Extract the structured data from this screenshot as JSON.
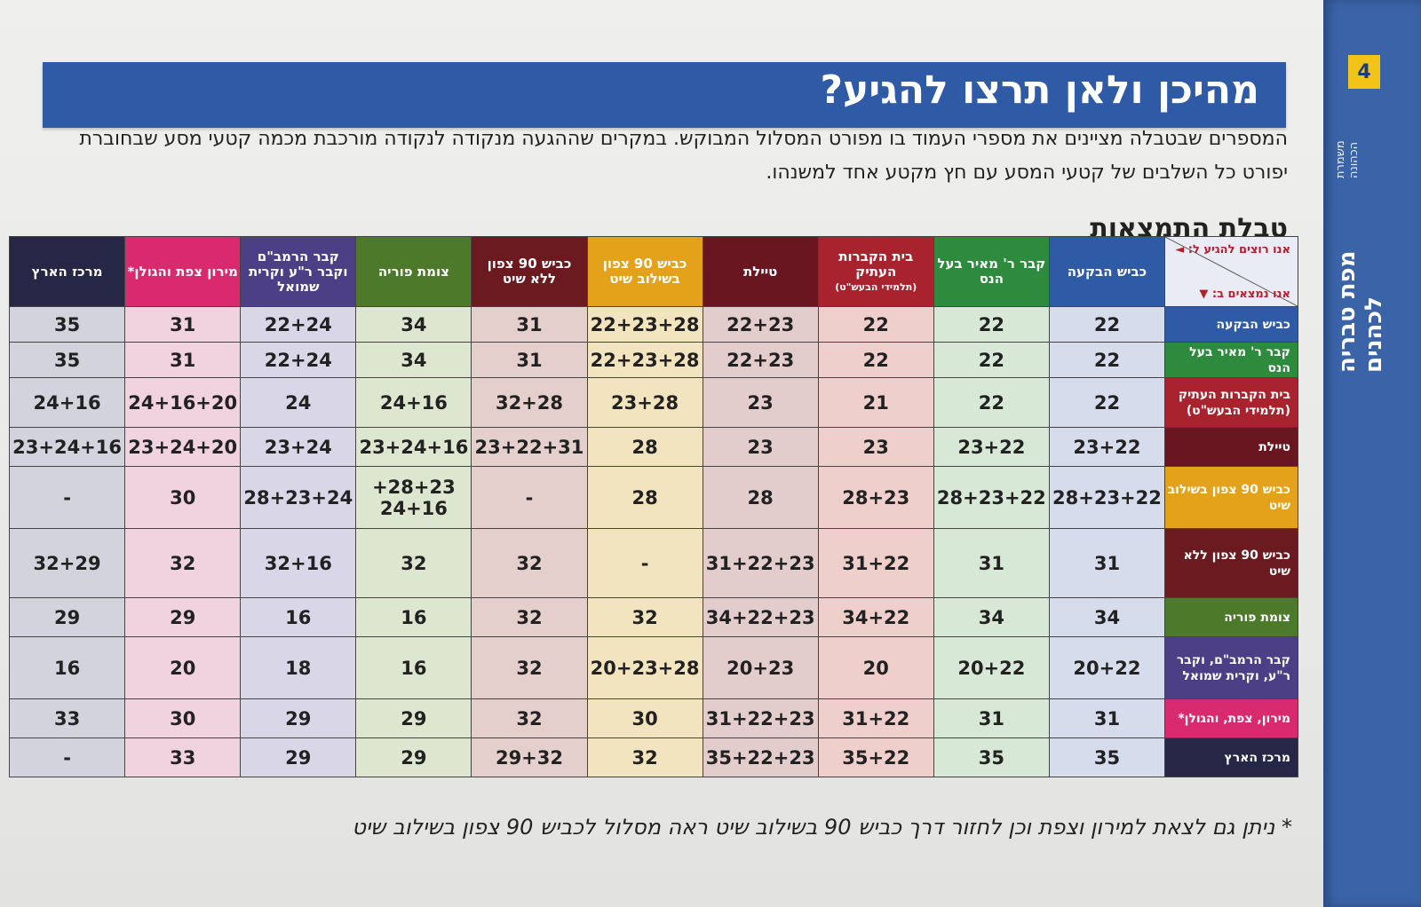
{
  "side": {
    "page_number": "4",
    "title": "מפת טבריה לכהנים",
    "subtitle": "משמרת הכהונה"
  },
  "heading": "מהיכן ולאן תרצו להגיע?",
  "intro": "המספרים שבטבלה מציינים את מספרי העמוד בו מפורט המסלול המבוקש. במקרים שההגעה מנקודה לנקודה מורכבת מכמה קטעי מסע שבחוברת יפורט כל השלבים של קטעי המסע עם חץ מקטע אחד למשנהו.",
  "results_title": "טבלת התמצאות",
  "corner": {
    "to": "אנו רוצים להגיע ל: ◄",
    "from": "אנו נמצאים ב: ▼"
  },
  "colors": {
    "blue": "#2f5aa6",
    "green": "#2e8a3c",
    "crimson": "#a9232e",
    "maroon": "#6a1620",
    "orange": "#e3a21a",
    "darkred": "#6b1a1f",
    "olive": "#4d7a2a",
    "purple": "#4c3f86",
    "pink": "#d92a6f",
    "navy": "#262646"
  },
  "columns": [
    {
      "label": "כביש הבקעה",
      "color": "#2f5aa6",
      "tint": "#d6dcec"
    },
    {
      "label": "קבר ר' מאיר בעל הנס",
      "color": "#2e8a3c",
      "tint": "#d8e8d6"
    },
    {
      "label": "בית הקברות העתיק",
      "sub": "(תלמידי הבעש\"ט)",
      "color": "#a9232e",
      "tint": "#efcfcc"
    },
    {
      "label": "טיילת",
      "color": "#6a1620",
      "tint": "#e2cccc"
    },
    {
      "label": "כביש 90 צפון בשילוב שיט",
      "color": "#e3a21a",
      "tint": "#f3e4c0"
    },
    {
      "label": "כביש 90 צפון ללא שיט",
      "color": "#6b1a1f",
      "tint": "#e4cfcd"
    },
    {
      "label": "צומת פוריה",
      "color": "#4d7a2a",
      "tint": "#dde6cf"
    },
    {
      "label": "קבר הרמב\"ם וקבר ר\"ע וקרית שמואל",
      "color": "#4c3f86",
      "tint": "#d9d6e8"
    },
    {
      "label": "מירון צפת והגולן*",
      "color": "#d92a6f",
      "tint": "#f1d2df"
    },
    {
      "label": "מרכז הארץ",
      "color": "#262646",
      "tint": "#d3d3dd"
    }
  ],
  "rows": [
    {
      "label": "כביש הבקעה",
      "color": "#2f5aa6",
      "cells": [
        "22",
        "22",
        "22",
        "22+23",
        "22+23+28",
        "31",
        "34",
        "22+24",
        "31",
        "35"
      ]
    },
    {
      "label": "קבר ר' מאיר בעל הנס",
      "color": "#2e8a3c",
      "cells": [
        "22",
        "22",
        "22",
        "22+23",
        "22+23+28",
        "31",
        "34",
        "22+24",
        "31",
        "35"
      ]
    },
    {
      "label": "בית הקברות העתיק (תלמידי הבעש\"ט)",
      "color": "#a9232e",
      "cells": [
        "22",
        "22",
        "21",
        "23",
        "23+28",
        "32+28",
        "24+16",
        "24",
        "24+16+20",
        "24+16"
      ]
    },
    {
      "label": "טיילת",
      "color": "#6a1620",
      "cells": [
        "23+22",
        "23+22",
        "23",
        "23",
        "28",
        "23+22+31",
        "23+24+16",
        "23+24",
        "23+24+20",
        "23+24+16"
      ]
    },
    {
      "label": "כביש 90 צפון בשילוב שיט",
      "color": "#e3a21a",
      "cells": [
        "28+23+22",
        "28+23+22",
        "28+23",
        "28",
        "28",
        "-",
        "28+23+ 24+16",
        "28+23+24",
        "30",
        "-"
      ]
    },
    {
      "label": "כביש 90 צפון ללא שיט",
      "color": "#6b1a1f",
      "cells": [
        "31",
        "31",
        "31+22",
        "31+22+23",
        "-",
        "32",
        "32",
        "32+16",
        "32",
        "32+29"
      ]
    },
    {
      "label": "צומת פוריה",
      "color": "#4d7a2a",
      "cells": [
        "34",
        "34",
        "34+22",
        "34+22+23",
        "32",
        "32",
        "16",
        "16",
        "29",
        "29"
      ]
    },
    {
      "label": "קבר הרמב\"ם, וקבר ר\"ע, וקרית שמואל",
      "color": "#4c3f86",
      "cells": [
        "20+22",
        "20+22",
        "20",
        "20+23",
        "20+23+28",
        "32",
        "16",
        "18",
        "20",
        "16"
      ]
    },
    {
      "label": "מירון, צפת, והגולן*",
      "color": "#d92a6f",
      "cells": [
        "31",
        "31",
        "31+22",
        "31+22+23",
        "30",
        "32",
        "29",
        "29",
        "30",
        "33"
      ]
    },
    {
      "label": "מרכז הארץ",
      "color": "#262646",
      "cells": [
        "35",
        "35",
        "35+22",
        "35+22+23",
        "32",
        "29+32",
        "29",
        "29",
        "33",
        "-"
      ]
    }
  ],
  "footnote": "* ניתן גם לצאת למירון וצפת וכן לחזור דרך כביש 90 בשילוב שיט ראה מסלול לכביש 90 צפון בשילוב שיט"
}
